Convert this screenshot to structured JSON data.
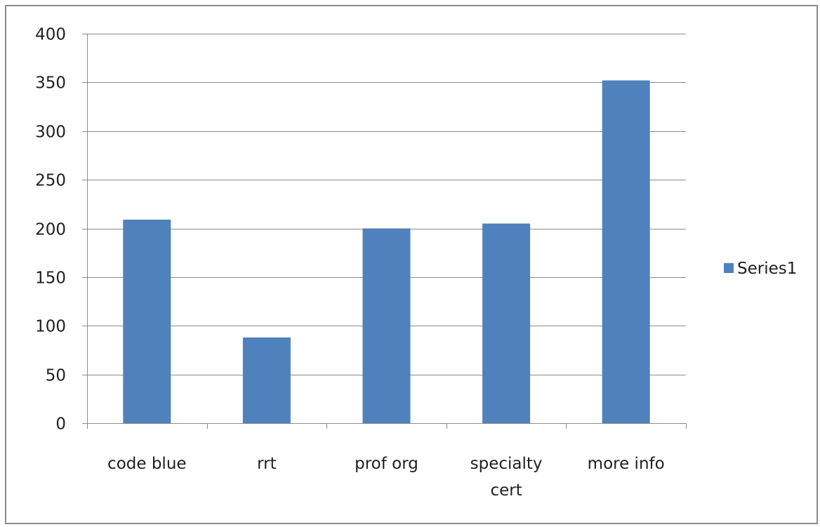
{
  "chart_data": {
    "type": "bar",
    "categories": [
      "code blue",
      "rrt",
      "prof org",
      "specialty cert",
      "more info"
    ],
    "category_lines": [
      [
        "code blue"
      ],
      [
        "rrt"
      ],
      [
        "prof org"
      ],
      [
        "specialty",
        "cert"
      ],
      [
        "more info"
      ]
    ],
    "series": [
      {
        "name": "Series1",
        "values": [
          209,
          88,
          200,
          205,
          352
        ],
        "color": "#4f81bd"
      }
    ],
    "ylim": [
      0,
      400
    ],
    "yticks": [
      0,
      50,
      100,
      150,
      200,
      250,
      300,
      350,
      400
    ],
    "grid": true,
    "legend": "right",
    "title": "",
    "xlabel": "",
    "ylabel": ""
  }
}
